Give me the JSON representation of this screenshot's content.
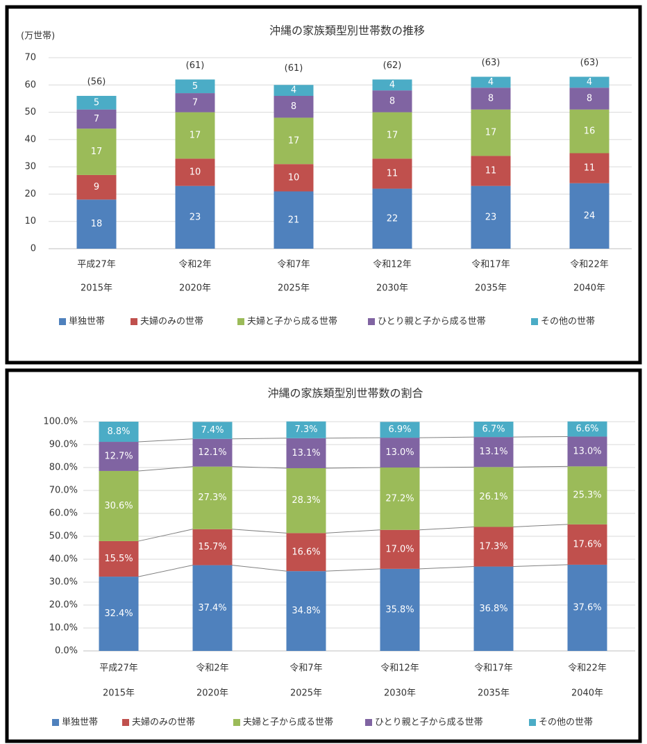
{
  "chart_data": [
    {
      "type": "stacked-bar",
      "title": "沖縄の家族類型別世帯数の推移",
      "ylabel": "(万世帯)",
      "categories": [
        "平成27年",
        "令和2年",
        "令和7年",
        "令和12年",
        "令和17年",
        "令和22年"
      ],
      "categories2": [
        "2015年",
        "2020年",
        "2025年",
        "2030年",
        "2035年",
        "2040年"
      ],
      "series": [
        {
          "name": "単独世帯",
          "color": "#4f81bd",
          "values": [
            18,
            23,
            21,
            22,
            23,
            24
          ]
        },
        {
          "name": "夫婦のみの世帯",
          "color": "#c0504d",
          "values": [
            9,
            10,
            10,
            11,
            11,
            11
          ]
        },
        {
          "name": "夫婦と子から成る世帯",
          "color": "#9bbb59",
          "values": [
            17,
            17,
            17,
            17,
            17,
            16
          ]
        },
        {
          "name": "ひとり親と子から成る世帯",
          "color": "#8064a2",
          "values": [
            7,
            7,
            8,
            8,
            8,
            8
          ]
        },
        {
          "name": "その他の世帯",
          "color": "#4bacc6",
          "values": [
            5,
            5,
            4,
            4,
            4,
            4
          ]
        }
      ],
      "totals": {
        "values": [
          56,
          61,
          61,
          62,
          63,
          63
        ],
        "value_labels": [
          "(56)",
          "(61)",
          "(61)",
          "(62)",
          "(63)",
          "(63)"
        ]
      },
      "ylim": [
        0,
        70
      ],
      "yticks": [
        0,
        10,
        20,
        30,
        40,
        50,
        60,
        70
      ],
      "grid": true,
      "legend": "bottom"
    },
    {
      "type": "stacked-bar",
      "title": "沖縄の家族類型別世帯数の割合",
      "categories": [
        "平成27年",
        "令和2年",
        "令和7年",
        "令和12年",
        "令和17年",
        "令和22年"
      ],
      "categories2": [
        "2015年",
        "2020年",
        "2025年",
        "2030年",
        "2035年",
        "2040年"
      ],
      "series": [
        {
          "name": "単独世帯",
          "color": "#4f81bd",
          "values": [
            32.4,
            37.4,
            34.8,
            35.8,
            36.8,
            37.6
          ],
          "value_labels": [
            "32.4%",
            "37.4%",
            "34.8%",
            "35.8%",
            "36.8%",
            "37.6%"
          ]
        },
        {
          "name": "夫婦のみの世帯",
          "color": "#c0504d",
          "values": [
            15.5,
            15.7,
            16.6,
            17.0,
            17.3,
            17.6
          ],
          "value_labels": [
            "15.5%",
            "15.7%",
            "16.6%",
            "17.0%",
            "17.3%",
            "17.6%"
          ]
        },
        {
          "name": "夫婦と子から成る世帯",
          "color": "#9bbb59",
          "values": [
            30.6,
            27.3,
            28.3,
            27.2,
            26.1,
            25.3
          ],
          "value_labels": [
            "30.6%",
            "27.3%",
            "28.3%",
            "27.2%",
            "26.1%",
            "25.3%"
          ]
        },
        {
          "name": "ひとり親と子から成る世帯",
          "color": "#8064a2",
          "values": [
            12.7,
            12.1,
            13.1,
            13.0,
            13.1,
            13.0
          ],
          "value_labels": [
            "12.7%",
            "12.1%",
            "13.1%",
            "13.0%",
            "13.1%",
            "13.0%"
          ]
        },
        {
          "name": "その他の世帯",
          "color": "#4bacc6",
          "values": [
            8.8,
            7.4,
            7.3,
            6.9,
            6.7,
            6.6
          ],
          "value_labels": [
            "8.8%",
            "7.4%",
            "7.3%",
            "6.9%",
            "6.7%",
            "6.6%"
          ]
        }
      ],
      "ylim": [
        0,
        100
      ],
      "yticks": [
        {
          "value": 0,
          "label": "0.0%"
        },
        {
          "value": 10,
          "label": "10.0%"
        },
        {
          "value": 20,
          "label": "20.0%"
        },
        {
          "value": 30,
          "label": "30.0%"
        },
        {
          "value": 40,
          "label": "40.0%"
        },
        {
          "value": 50,
          "label": "50.0%"
        },
        {
          "value": 60,
          "label": "60.0%"
        },
        {
          "value": 70,
          "label": "70.0%"
        },
        {
          "value": 80,
          "label": "80.0%"
        },
        {
          "value": 90,
          "label": "90.0%"
        },
        {
          "value": 100,
          "label": "100.0%"
        }
      ],
      "grid": true,
      "legend": "bottom",
      "connectors": true
    }
  ]
}
